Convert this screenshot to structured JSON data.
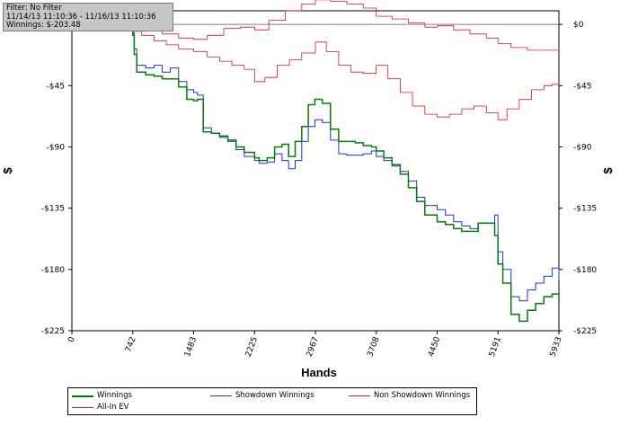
{
  "filter": {
    "line1": "Filter: No Filter",
    "line2": "11/14/13 11:10:36 - 11/16/13 11:10:36",
    "line3": "Winnings: $-203.48"
  },
  "chart_data": {
    "type": "line",
    "xlabel": "Hands",
    "ylabel": "$",
    "xlim": [
      0,
      5933
    ],
    "ylim": [
      -225,
      10
    ],
    "x_ticks": [
      "0",
      "742",
      "1483",
      "2225",
      "2967",
      "3708",
      "4450",
      "5191",
      "5933"
    ],
    "y_ticks": [
      "$0",
      "-$45",
      "-$90",
      "-$135",
      "-$180",
      "-$225"
    ],
    "y_tick_values": [
      0,
      -45,
      -90,
      -135,
      -180,
      -225
    ],
    "legend_position": "bottom",
    "series": [
      {
        "name": "Winnings",
        "color": "#0a7a0a",
        "width": 1.5,
        "x": [
          0,
          100,
          300,
          500,
          620,
          680,
          700,
          742,
          760,
          790,
          900,
          1000,
          1100,
          1200,
          1300,
          1400,
          1483,
          1530,
          1600,
          1700,
          1800,
          1900,
          2000,
          2100,
          2225,
          2280,
          2380,
          2470,
          2560,
          2640,
          2720,
          2800,
          2880,
          2960,
          3050,
          3150,
          3250,
          3350,
          3450,
          3550,
          3650,
          3708,
          3800,
          3900,
          4000,
          4100,
          4200,
          4300,
          4450,
          4550,
          4650,
          4750,
          4850,
          4950,
          5050,
          5150,
          5191,
          5250,
          5350,
          5450,
          5550,
          5650,
          5750,
          5850,
          5933
        ],
        "y": [
          0,
          -2,
          -1,
          1,
          3,
          4,
          6,
          -8,
          -22,
          -35,
          -37,
          -38,
          -40,
          -40,
          -46,
          -55,
          -56,
          -55,
          -79,
          -80,
          -82,
          -85,
          -90,
          -94,
          -98,
          -100,
          -98,
          -90,
          -88,
          -97,
          -86,
          -75,
          -59,
          -55,
          -58,
          -77,
          -86,
          -86,
          -87,
          -89,
          -90,
          -93,
          -98,
          -103,
          -110,
          -120,
          -130,
          -140,
          -145,
          -147,
          -150,
          -152,
          -152,
          -146,
          -146,
          -155,
          -176,
          -190,
          -213,
          -218,
          -210,
          -205,
          -200,
          -198,
          -203.48
        ]
      },
      {
        "name": "Showdown Winnings",
        "color": "#2030e0",
        "width": 1,
        "x": [
          0,
          100,
          300,
          500,
          620,
          680,
          700,
          742,
          760,
          790,
          900,
          1000,
          1100,
          1200,
          1300,
          1400,
          1483,
          1530,
          1600,
          1700,
          1800,
          1900,
          2000,
          2100,
          2225,
          2280,
          2380,
          2470,
          2560,
          2640,
          2720,
          2800,
          2880,
          2960,
          3050,
          3150,
          3250,
          3350,
          3450,
          3550,
          3650,
          3708,
          3800,
          3900,
          4000,
          4100,
          4200,
          4300,
          4450,
          4550,
          4650,
          4750,
          4850,
          4950,
          5050,
          5150,
          5191,
          5250,
          5350,
          5450,
          5550,
          5650,
          5750,
          5850,
          5933
        ],
        "y": [
          0,
          -2,
          -1,
          1,
          3,
          4,
          6,
          -6,
          -18,
          -30,
          -32,
          -30,
          -35,
          -32,
          -42,
          -48,
          -50,
          -52,
          -76,
          -80,
          -83,
          -86,
          -92,
          -97,
          -100,
          -102,
          -101,
          -95,
          -100,
          -106,
          -100,
          -86,
          -75,
          -70,
          -72,
          -85,
          -95,
          -96,
          -96,
          -95,
          -93,
          -97,
          -100,
          -104,
          -108,
          -115,
          -127,
          -133,
          -136,
          -140,
          -145,
          -148,
          -150,
          -146,
          -146,
          -140,
          -167,
          -180,
          -200,
          -203,
          -195,
          -190,
          -185,
          -179,
          -188
        ]
      },
      {
        "name": "Non Showdown Winnings",
        "color": "#e01818",
        "width": 0.8,
        "x": [
          0,
          150,
          350,
          550,
          650,
          742,
          850,
          1000,
          1150,
          1300,
          1483,
          1650,
          1800,
          1950,
          2100,
          2225,
          2350,
          2500,
          2650,
          2800,
          2967,
          3100,
          3250,
          3400,
          3550,
          3708,
          3850,
          4000,
          4150,
          4300,
          4450,
          4600,
          4750,
          4900,
          5050,
          5191,
          5300,
          5450,
          5600,
          5750,
          5850,
          5933
        ],
        "y": [
          0,
          -1,
          -2,
          -4,
          -3,
          -5,
          -8,
          -12,
          -15,
          -18,
          -20,
          -24,
          -27,
          -30,
          -33,
          -42,
          -39,
          -30,
          -26,
          -21,
          -13,
          -20,
          -30,
          -35,
          -36,
          -30,
          -40,
          -50,
          -60,
          -66,
          -68,
          -66,
          -62,
          -60,
          -65,
          -70,
          -62,
          -55,
          -48,
          -45,
          -44,
          -43
        ]
      },
      {
        "name": "All-In EV",
        "color": "#e01818",
        "width": 0.8,
        "x": [
          0,
          200,
          400,
          600,
          742,
          900,
          1100,
          1300,
          1483,
          1650,
          1850,
          2050,
          2225,
          2400,
          2600,
          2800,
          2967,
          3150,
          3350,
          3550,
          3708,
          3900,
          4100,
          4300,
          4450,
          4650,
          4850,
          5050,
          5191,
          5350,
          5550,
          5750,
          5933
        ],
        "y": [
          0,
          -1,
          -3,
          -4,
          -5,
          -4,
          -7,
          -10,
          -11,
          -8,
          -3,
          -2,
          -4,
          3,
          10,
          15,
          18,
          17,
          15,
          12,
          6,
          4,
          1,
          -2,
          -1,
          -4,
          -7,
          -10,
          -14,
          -17,
          -19,
          -19,
          -18
        ]
      }
    ]
  }
}
